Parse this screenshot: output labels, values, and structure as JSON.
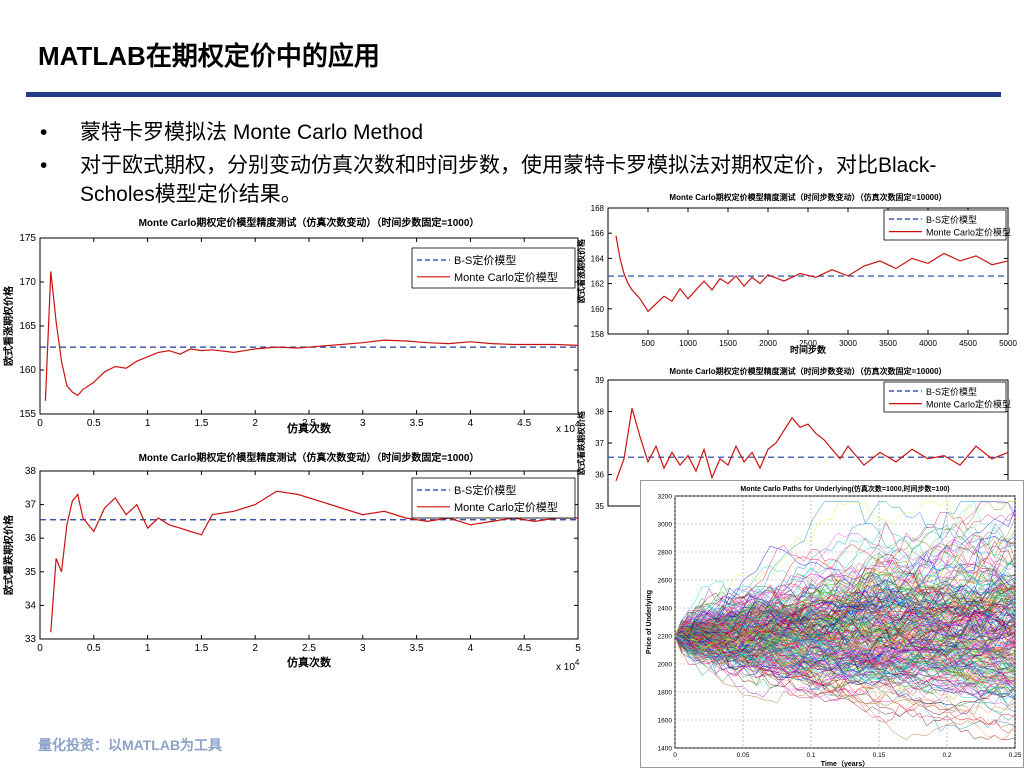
{
  "slide": {
    "title": "MATLAB在期权定价中的应用",
    "bullets": [
      "蒙特卡罗模拟法 Monte Carlo Method",
      "对于欧式期权，分别变动仿真次数和时间步数，使用蒙特卡罗模拟法对期权定价，对比Black-Scholes模型定价结果。"
    ],
    "bullet_symbol": "•",
    "footer": "量化投资：以MATLAB为工具"
  },
  "colors": {
    "title_rule": "#1f3c88",
    "bs_line": "#1f3ca0",
    "mc_line": "#cc1111",
    "footer": "#8ca2c8"
  },
  "chart_data": [
    {
      "id": "call-by-sims",
      "type": "line",
      "title": "Monte Carlo期权定价模型精度测试（仿真次数变动）（时间步数固定=1000）",
      "xlabel": "仿真次数",
      "ylabel": "欧式看涨期权价格",
      "x_multiplier": "x 10",
      "x_exponent": "4",
      "xlim": [
        0,
        5
      ],
      "ylim": [
        155,
        175
      ],
      "xticks": [
        0,
        0.5,
        1,
        1.5,
        2,
        2.5,
        3,
        3.5,
        4,
        4.5
      ],
      "xtick_labels": [
        "0",
        "0.5",
        "1",
        "1.5",
        "2",
        "2.5",
        "3",
        "3.5",
        "4",
        "4.5"
      ],
      "yticks": [
        155,
        160,
        165,
        170,
        175
      ],
      "legend": [
        "B-S定价模型",
        "Monte Carlo定价模型"
      ],
      "legend_position": "top-right",
      "bs_value": 162.6,
      "mc_x": [
        0.05,
        0.1,
        0.15,
        0.2,
        0.25,
        0.3,
        0.35,
        0.4,
        0.5,
        0.6,
        0.7,
        0.8,
        0.9,
        1.0,
        1.1,
        1.2,
        1.3,
        1.4,
        1.5,
        1.6,
        1.8,
        2.0,
        2.2,
        2.4,
        2.6,
        2.8,
        3.0,
        3.2,
        3.4,
        3.6,
        3.8,
        4.0,
        4.2,
        4.4,
        4.6,
        4.8,
        5.0
      ],
      "mc_y": [
        156.5,
        171.2,
        165.5,
        161.0,
        158.2,
        157.5,
        157.1,
        157.8,
        158.6,
        159.8,
        160.4,
        160.2,
        161.0,
        161.5,
        162.0,
        162.2,
        161.8,
        162.4,
        162.2,
        162.3,
        162.0,
        162.4,
        162.6,
        162.5,
        162.7,
        162.9,
        163.1,
        163.4,
        163.3,
        163.1,
        163.0,
        163.2,
        163.0,
        162.9,
        162.9,
        162.9,
        162.8
      ]
    },
    {
      "id": "put-by-sims",
      "type": "line",
      "title": "Monte Carlo期权定价模型精度测试（仿真次数变动）（时间步数固定=1000）",
      "xlabel": "仿真次数",
      "ylabel": "欧式看跌期权价格",
      "x_multiplier": "x 10",
      "x_exponent": "4",
      "xlim": [
        0,
        5
      ],
      "ylim": [
        33,
        38
      ],
      "xticks": [
        0,
        0.5,
        1,
        1.5,
        2,
        2.5,
        3,
        3.5,
        4,
        4.5,
        5
      ],
      "xtick_labels": [
        "0",
        "0.5",
        "1",
        "1.5",
        "2",
        "2.5",
        "3",
        "3.5",
        "4",
        "4.5",
        "5"
      ],
      "yticks": [
        33,
        34,
        35,
        36,
        37,
        38
      ],
      "legend": [
        "B-S定价模型",
        "Monte Carlo定价模型"
      ],
      "legend_position": "top-right",
      "bs_value": 36.55,
      "mc_x": [
        0.1,
        0.15,
        0.2,
        0.25,
        0.3,
        0.35,
        0.4,
        0.45,
        0.5,
        0.6,
        0.7,
        0.8,
        0.9,
        1.0,
        1.1,
        1.2,
        1.3,
        1.4,
        1.5,
        1.6,
        1.8,
        2.0,
        2.2,
        2.4,
        2.6,
        2.8,
        3.0,
        3.2,
        3.4,
        3.6,
        3.8,
        4.0,
        4.2,
        4.4,
        4.6,
        4.8,
        5.0
      ],
      "mc_y": [
        33.2,
        35.4,
        35.0,
        36.4,
        37.1,
        37.3,
        36.6,
        36.4,
        36.2,
        36.9,
        37.2,
        36.7,
        37.0,
        36.3,
        36.6,
        36.4,
        36.3,
        36.2,
        36.1,
        36.7,
        36.8,
        37.0,
        37.4,
        37.3,
        37.1,
        36.9,
        36.7,
        36.8,
        36.6,
        36.5,
        36.6,
        36.4,
        36.5,
        36.6,
        36.5,
        36.6,
        36.6
      ]
    },
    {
      "id": "call-by-steps",
      "type": "line",
      "title": "Monte Carlo期权定价模型精度测试（时间步数变动）（仿真次数固定=10000）",
      "xlabel": "时间步数",
      "ylabel": "欧式看涨期权价格",
      "xlim": [
        0,
        5000
      ],
      "ylim": [
        158,
        168
      ],
      "xticks": [
        500,
        1000,
        1500,
        2000,
        2500,
        3000,
        3500,
        4000,
        4500,
        5000
      ],
      "xtick_labels": [
        "500",
        "1000",
        "1500",
        "2000",
        "2500",
        "3000",
        "3500",
        "4000",
        "4500",
        "5000"
      ],
      "yticks": [
        158,
        160,
        162,
        164,
        166,
        168
      ],
      "legend": [
        "B-S定价模型",
        "Monte Carlo定价模型"
      ],
      "legend_position": "top-right",
      "bs_value": 162.6,
      "mc_x": [
        100,
        150,
        200,
        250,
        300,
        400,
        500,
        600,
        700,
        800,
        900,
        1000,
        1100,
        1200,
        1300,
        1400,
        1500,
        1600,
        1700,
        1800,
        1900,
        2000,
        2200,
        2400,
        2600,
        2800,
        3000,
        3200,
        3400,
        3600,
        3800,
        4000,
        4200,
        4400,
        4600,
        4800,
        5000
      ],
      "mc_y": [
        165.8,
        164.0,
        162.8,
        162.0,
        161.5,
        160.8,
        159.8,
        160.4,
        161.0,
        160.6,
        161.6,
        160.8,
        161.5,
        162.2,
        161.5,
        162.4,
        162.0,
        162.6,
        161.8,
        162.5,
        162.0,
        162.7,
        162.2,
        162.8,
        162.5,
        163.1,
        162.6,
        163.4,
        163.8,
        163.2,
        164.0,
        163.6,
        164.4,
        163.8,
        164.2,
        163.5,
        163.8
      ]
    },
    {
      "id": "put-by-steps",
      "type": "line",
      "title": "Monte Carlo期权定价模型精度测试（时间步数变动）（仿真次数固定=10000）",
      "xlabel": "",
      "ylabel": "欧式看跌期权价格",
      "xlim": [
        0,
        5000
      ],
      "ylim": [
        35,
        39
      ],
      "yticks": [
        35,
        36,
        37,
        38,
        39
      ],
      "legend": [
        "B-S定价模型",
        "Monte Carlo定价模型"
      ],
      "legend_position": "top-right",
      "bs_value": 36.55,
      "mc_x": [
        100,
        200,
        300,
        400,
        500,
        600,
        700,
        800,
        900,
        1000,
        1100,
        1200,
        1300,
        1400,
        1500,
        1600,
        1700,
        1800,
        1900,
        2000,
        2100,
        2200,
        2300,
        2400,
        2500,
        2600,
        2700,
        2800,
        2900,
        3000,
        3200,
        3400,
        3600,
        3800,
        4000,
        4200,
        4400,
        4600,
        4800,
        5000
      ],
      "mc_y": [
        35.8,
        36.5,
        38.1,
        37.2,
        36.4,
        36.9,
        36.2,
        36.7,
        36.3,
        36.6,
        36.1,
        36.8,
        35.9,
        36.5,
        36.3,
        36.9,
        36.4,
        36.7,
        36.2,
        36.8,
        37.0,
        37.4,
        37.8,
        37.5,
        37.6,
        37.3,
        37.1,
        36.8,
        36.5,
        36.9,
        36.3,
        36.7,
        36.4,
        36.8,
        36.5,
        36.6,
        36.3,
        36.9,
        36.5,
        36.7
      ]
    },
    {
      "id": "paths",
      "type": "line",
      "title": "Monte Carlo Paths for Underlying(仿真次数=1000,时间步数=100)",
      "xlabel": "Time（years）",
      "ylabel": "Price of Underlying",
      "xlim": [
        0,
        0.25
      ],
      "ylim": [
        1400,
        3200
      ],
      "xticks": [
        0,
        0.05,
        0.1,
        0.15,
        0.2,
        0.25
      ],
      "xtick_labels": [
        "0",
        "0.05",
        "0.1",
        "0.15",
        "0.2",
        "0.25"
      ],
      "yticks": [
        1400,
        1600,
        1800,
        2000,
        2200,
        2400,
        2600,
        2800,
        3000,
        3200
      ],
      "start_price": 2200,
      "paths_shown": 1000,
      "steps": 100,
      "envelope": {
        "upper_end": 3150,
        "lower_end": 1600
      },
      "grid": true
    }
  ]
}
